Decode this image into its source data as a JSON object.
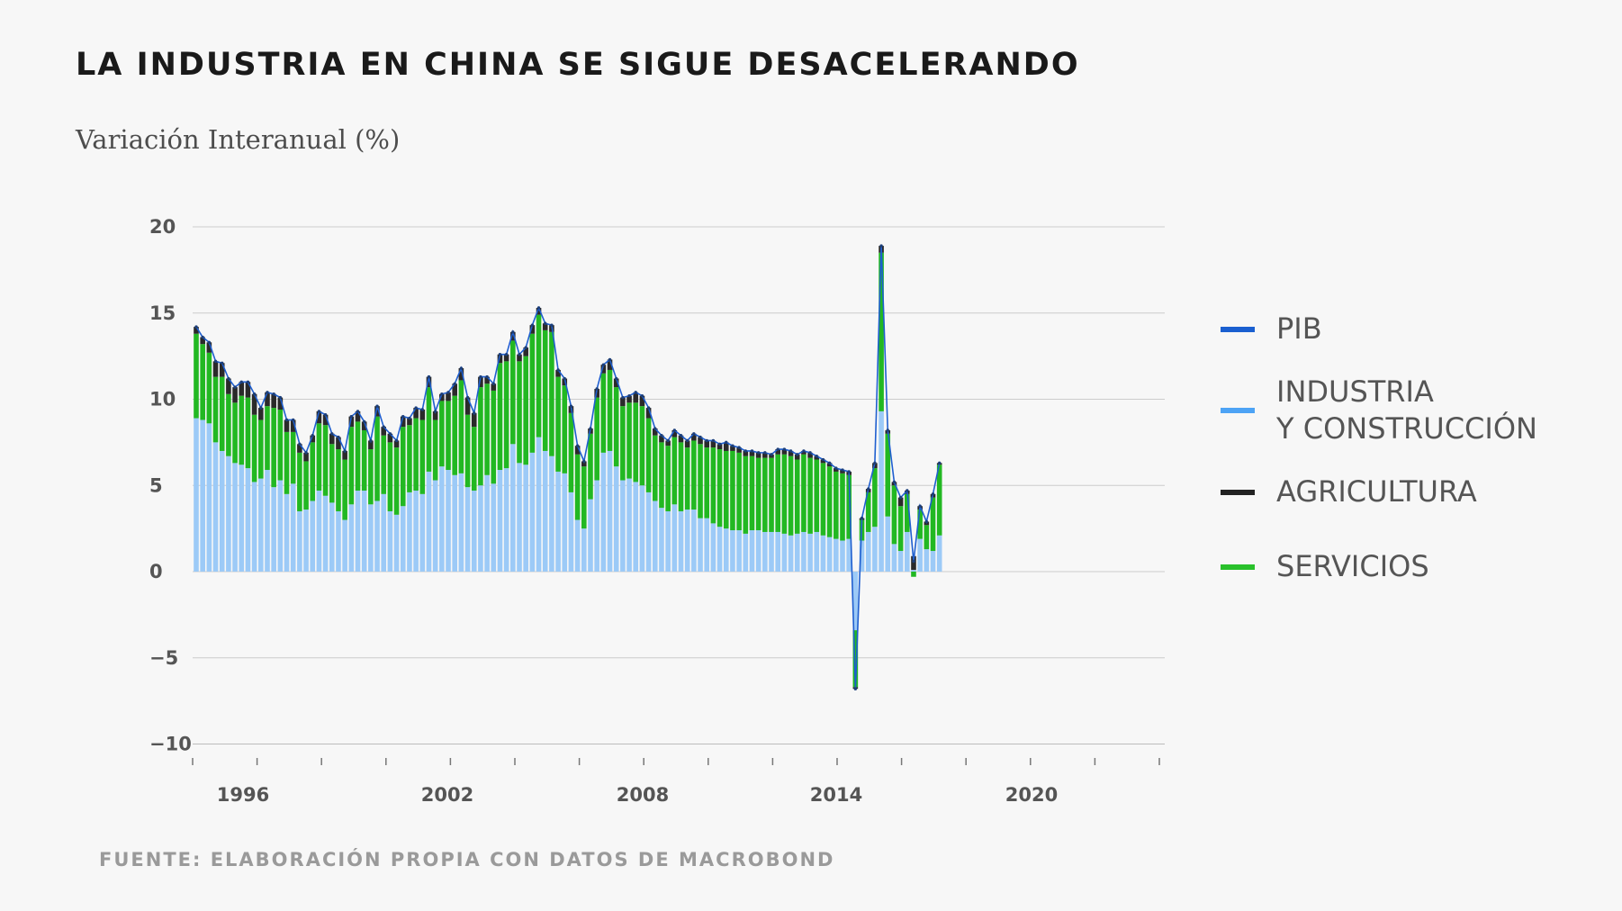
{
  "title": "LA INDUSTRIA EN CHINA SE SIGUE DESACELERANDO",
  "subtitle": "Variación Interanual (%)",
  "source": "FUENTE: ELABORACIÓN PROPIA CON DATOS DE MACROBOND",
  "legend": [
    {
      "label": "PIB",
      "color": "#1a5fd0"
    },
    {
      "label": "INDUSTRIA\nY CONSTRUCCIÓN",
      "color": "#4da3f5"
    },
    {
      "label": "AGRICULTURA",
      "color": "#222222"
    },
    {
      "label": "SERVICIOS",
      "color": "#29c12b"
    }
  ],
  "colors": {
    "industria_bar": "#9ccaf7",
    "servicios_bar": "#22b822",
    "agricultura_bar": "#2a2a2a",
    "pib_line": "#1f5fcf",
    "axis_text": "#555555",
    "gridline": "#cccccc",
    "background": "#f7f7f7"
  },
  "chart_data": {
    "type": "bar",
    "stacked": true,
    "frequency": "quarterly",
    "x_start": "1994 Q1",
    "x_tick_labels": [
      "1996",
      "2002",
      "2008",
      "2014",
      "2020"
    ],
    "y_ticks": [
      20,
      15,
      10,
      5,
      0,
      -5,
      -10
    ],
    "y_tick_labels": [
      "20",
      "15",
      "10",
      "5",
      "0",
      "−5",
      "−10"
    ],
    "ylim": [
      -10,
      20
    ],
    "grid": "horizontal",
    "legend_position": "right",
    "series": [
      {
        "name": "PIB",
        "type": "line",
        "values": [
          14.2,
          13.6,
          13.3,
          12.2,
          12.1,
          11.2,
          10.7,
          11.0,
          11.0,
          10.3,
          9.5,
          10.4,
          10.3,
          10.1,
          8.8,
          8.8,
          7.4,
          6.9,
          7.9,
          9.3,
          9.1,
          8.0,
          7.8,
          7.0,
          9.0,
          9.3,
          8.7,
          7.6,
          9.6,
          8.4,
          8.0,
          7.6,
          9.0,
          8.9,
          9.5,
          9.4,
          11.3,
          9.3,
          10.3,
          10.4,
          10.9,
          11.8,
          10.1,
          9.2,
          11.3,
          11.3,
          10.9,
          12.6,
          12.6,
          13.9,
          12.6,
          13.0,
          14.3,
          15.3,
          14.4,
          14.3,
          11.7,
          11.2,
          9.6,
          7.3,
          6.4,
          8.3,
          10.6,
          12.0,
          12.3,
          11.2,
          10.1,
          10.2,
          10.4,
          10.2,
          9.5,
          8.3,
          7.9,
          7.6,
          8.2,
          7.9,
          7.6,
          8.0,
          7.8,
          7.6,
          7.6,
          7.4,
          7.5,
          7.3,
          7.2,
          7.0,
          7.0,
          6.9,
          6.9,
          6.8,
          7.1,
          7.1,
          7.0,
          6.8,
          7.0,
          6.9,
          6.7,
          6.5,
          6.3,
          6.0,
          5.9,
          5.8,
          -6.8,
          3.1,
          4.8,
          6.3,
          18.9,
          8.2,
          5.2,
          4.3,
          4.7,
          0.6,
          3.8,
          2.9,
          4.5,
          6.3
        ]
      },
      {
        "name": "INDUSTRIA Y CONSTRUCCIÓN",
        "values": [
          8.9,
          8.8,
          8.6,
          7.5,
          7.0,
          6.7,
          6.3,
          6.2,
          6.0,
          5.2,
          5.4,
          5.9,
          4.9,
          5.3,
          4.5,
          5.1,
          3.5,
          3.6,
          4.1,
          4.7,
          4.4,
          4.0,
          3.5,
          3.0,
          3.9,
          4.7,
          4.7,
          3.9,
          4.1,
          4.5,
          3.5,
          3.3,
          3.8,
          4.6,
          4.7,
          4.5,
          5.8,
          5.3,
          6.1,
          5.9,
          5.6,
          5.7,
          4.9,
          4.7,
          5.0,
          5.6,
          5.1,
          5.9,
          6.0,
          7.4,
          6.3,
          6.2,
          6.9,
          7.8,
          7.0,
          6.7,
          5.8,
          5.7,
          4.6,
          3.0,
          2.5,
          4.2,
          5.3,
          6.9,
          7.0,
          6.1,
          5.3,
          5.4,
          5.2,
          5.0,
          4.6,
          4.1,
          3.7,
          3.5,
          3.9,
          3.5,
          3.6,
          3.6,
          3.1,
          3.1,
          2.8,
          2.6,
          2.5,
          2.4,
          2.4,
          2.2,
          2.4,
          2.4,
          2.3,
          2.3,
          2.3,
          2.2,
          2.1,
          2.2,
          2.3,
          2.2,
          2.3,
          2.1,
          2.0,
          1.9,
          1.8,
          1.9,
          -3.4,
          1.8,
          2.3,
          2.6,
          9.3,
          3.2,
          1.6,
          1.2,
          2.3,
          0.1,
          1.9,
          1.3,
          1.2,
          2.1
        ]
      },
      {
        "name": "SERVICIOS",
        "values": [
          4.9,
          4.4,
          4.1,
          3.8,
          4.3,
          3.6,
          3.5,
          4.0,
          4.1,
          3.9,
          3.4,
          3.7,
          4.6,
          4.1,
          3.6,
          3.0,
          3.4,
          2.8,
          3.4,
          3.9,
          4.1,
          3.4,
          3.6,
          3.5,
          4.5,
          4.0,
          3.5,
          3.2,
          4.9,
          3.4,
          4.0,
          3.9,
          4.6,
          3.9,
          4.2,
          4.3,
          4.9,
          3.5,
          3.8,
          4.0,
          4.6,
          5.4,
          4.2,
          3.7,
          5.7,
          5.3,
          5.4,
          6.2,
          6.2,
          6.0,
          5.9,
          6.3,
          6.9,
          7.1,
          7.0,
          7.2,
          5.5,
          5.1,
          4.6,
          3.8,
          3.6,
          3.8,
          4.8,
          4.6,
          4.7,
          4.6,
          4.3,
          4.4,
          4.6,
          4.6,
          4.3,
          3.8,
          3.8,
          3.8,
          3.9,
          4.0,
          3.6,
          4.0,
          4.3,
          4.1,
          4.4,
          4.5,
          4.5,
          4.6,
          4.5,
          4.5,
          4.3,
          4.2,
          4.3,
          4.3,
          4.5,
          4.6,
          4.6,
          4.3,
          4.5,
          4.4,
          4.2,
          4.2,
          4.1,
          3.9,
          3.9,
          3.7,
          -3.3,
          1.2,
          2.3,
          3.4,
          9.2,
          4.8,
          3.4,
          2.6,
          2.2,
          -0.3,
          1.7,
          1.4,
          3.1,
          4.1
        ]
      },
      {
        "name": "AGRICULTURA",
        "values": [
          0.4,
          0.4,
          0.6,
          0.9,
          0.8,
          0.9,
          0.9,
          0.8,
          0.9,
          1.2,
          0.7,
          0.8,
          0.8,
          0.7,
          0.7,
          0.7,
          0.5,
          0.5,
          0.4,
          0.7,
          0.6,
          0.6,
          0.7,
          0.5,
          0.6,
          0.6,
          0.5,
          0.5,
          0.6,
          0.5,
          0.5,
          0.4,
          0.6,
          0.4,
          0.6,
          0.6,
          0.6,
          0.5,
          0.4,
          0.5,
          0.7,
          0.7,
          1.0,
          0.8,
          0.6,
          0.4,
          0.4,
          0.5,
          0.4,
          0.5,
          0.4,
          0.5,
          0.5,
          0.4,
          0.4,
          0.4,
          0.4,
          0.4,
          0.4,
          0.5,
          0.3,
          0.3,
          0.5,
          0.5,
          0.6,
          0.5,
          0.5,
          0.4,
          0.6,
          0.6,
          0.6,
          0.4,
          0.4,
          0.3,
          0.4,
          0.4,
          0.4,
          0.4,
          0.4,
          0.4,
          0.4,
          0.3,
          0.5,
          0.3,
          0.3,
          0.3,
          0.3,
          0.3,
          0.3,
          0.2,
          0.3,
          0.3,
          0.3,
          0.3,
          0.2,
          0.3,
          0.2,
          0.2,
          0.2,
          0.2,
          0.2,
          0.2,
          -0.1,
          0.1,
          0.2,
          0.3,
          0.4,
          0.2,
          0.2,
          0.5,
          0.2,
          0.8,
          0.2,
          0.2,
          0.2,
          0.1
        ]
      }
    ]
  }
}
